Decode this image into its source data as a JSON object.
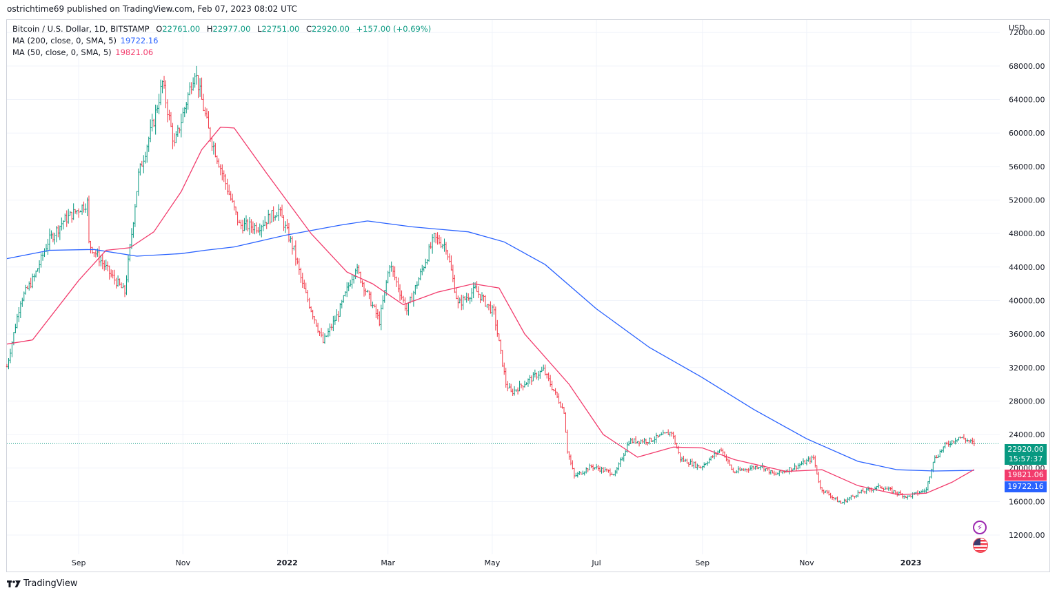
{
  "header": {
    "publish_line": "ostrichtime69 published on TradingView.com, Feb 07, 2023 08:02 UTC"
  },
  "legend": {
    "symbol": "Bitcoin / U.S. Dollar, 1D, BITSTAMP",
    "o_label": "O",
    "o_value": "22761.00",
    "h_label": "H",
    "h_value": "22977.00",
    "l_label": "L",
    "l_value": "22751.00",
    "c_label": "C",
    "c_value": "22920.00",
    "change": "+157.00 (+0.69%)",
    "ma200_label": "MA (200, close, 0, SMA, 5)",
    "ma200_value": "19722.16",
    "ma50_label": "MA (50, close, 0, SMA, 5)",
    "ma50_value": "19821.06"
  },
  "axis": {
    "currency": "USD"
  },
  "badges": {
    "price": "22920.00",
    "countdown": "15:57:37",
    "ma50": "19821.06",
    "ma200": "19722.16"
  },
  "footer": {
    "brand": "TradingView"
  },
  "icons": {
    "bolt": "lightning-icon",
    "flag": "us-flag-icon",
    "logo": "tradingview-logo-icon"
  },
  "colors": {
    "up": "#089981",
    "down": "#f23645",
    "ma200": "#2962ff",
    "ma50": "#f23b6c",
    "grid": "#f0f3fa",
    "text": "#131722"
  },
  "chart_data": {
    "type": "candlestick",
    "title": "Bitcoin / U.S. Dollar, 1D, BITSTAMP",
    "ylabel": "USD",
    "ylim": [
      9700,
      73500
    ],
    "yticks": [
      12000,
      16000,
      20000,
      24000,
      28000,
      32000,
      36000,
      40000,
      44000,
      48000,
      52000,
      56000,
      60000,
      64000,
      68000,
      72000
    ],
    "ytick_labels": [
      "12000.00",
      "16000.00",
      "20000.00",
      "24000.00",
      "28000.00",
      "32000.00",
      "36000.00",
      "40000.00",
      "44000.00",
      "48000.00",
      "52000.00",
      "56000.00",
      "60000.00",
      "64000.00",
      "68000.00",
      "72000.00"
    ],
    "xlim": [
      "2021-07-21",
      "2023-02-22"
    ],
    "xticks": [
      {
        "date": "2021-09-01",
        "label": "Sep"
      },
      {
        "date": "2021-11-01",
        "label": "Nov"
      },
      {
        "date": "2022-01-01",
        "label": "2022"
      },
      {
        "date": "2022-03-01",
        "label": "Mar"
      },
      {
        "date": "2022-05-01",
        "label": "May"
      },
      {
        "date": "2022-07-01",
        "label": "Jul"
      },
      {
        "date": "2022-09-01",
        "label": "Sep"
      },
      {
        "date": "2022-11-01",
        "label": "Nov"
      },
      {
        "date": "2023-01-01",
        "label": "2023"
      }
    ],
    "grid": true,
    "last_close": 22920,
    "close_path": [
      {
        "date": "2021-07-21",
        "price": 32100
      },
      {
        "date": "2021-07-29",
        "price": 40000
      },
      {
        "date": "2021-08-06",
        "price": 42800
      },
      {
        "date": "2021-08-14",
        "price": 47000
      },
      {
        "date": "2021-08-23",
        "price": 49500
      },
      {
        "date": "2021-09-06",
        "price": 51700
      },
      {
        "date": "2021-09-07",
        "price": 46800
      },
      {
        "date": "2021-09-20",
        "price": 43000
      },
      {
        "date": "2021-09-28",
        "price": 41000
      },
      {
        "date": "2021-10-06",
        "price": 55000
      },
      {
        "date": "2021-10-15",
        "price": 61500
      },
      {
        "date": "2021-10-20",
        "price": 66000
      },
      {
        "date": "2021-10-27",
        "price": 58500
      },
      {
        "date": "2021-11-08",
        "price": 67500
      },
      {
        "date": "2021-11-16",
        "price": 60300
      },
      {
        "date": "2021-11-26",
        "price": 54000
      },
      {
        "date": "2021-12-04",
        "price": 49000
      },
      {
        "date": "2021-12-15",
        "price": 48800
      },
      {
        "date": "2021-12-27",
        "price": 50800
      },
      {
        "date": "2022-01-05",
        "price": 46000
      },
      {
        "date": "2022-01-10",
        "price": 41800
      },
      {
        "date": "2022-01-22",
        "price": 35000
      },
      {
        "date": "2022-01-31",
        "price": 38500
      },
      {
        "date": "2022-02-10",
        "price": 44000
      },
      {
        "date": "2022-02-24",
        "price": 37500
      },
      {
        "date": "2022-03-02",
        "price": 44400
      },
      {
        "date": "2022-03-12",
        "price": 38800
      },
      {
        "date": "2022-03-28",
        "price": 47500
      },
      {
        "date": "2022-04-04",
        "price": 46500
      },
      {
        "date": "2022-04-11",
        "price": 39500
      },
      {
        "date": "2022-04-21",
        "price": 41300
      },
      {
        "date": "2022-05-02",
        "price": 38500
      },
      {
        "date": "2022-05-09",
        "price": 30100
      },
      {
        "date": "2022-05-12",
        "price": 29000
      },
      {
        "date": "2022-05-31",
        "price": 31700
      },
      {
        "date": "2022-06-12",
        "price": 26800
      },
      {
        "date": "2022-06-14",
        "price": 22100
      },
      {
        "date": "2022-06-18",
        "price": 19000
      },
      {
        "date": "2022-06-28",
        "price": 20200
      },
      {
        "date": "2022-07-12",
        "price": 19300
      },
      {
        "date": "2022-07-20",
        "price": 23200
      },
      {
        "date": "2022-08-01",
        "price": 23300
      },
      {
        "date": "2022-08-14",
        "price": 24300
      },
      {
        "date": "2022-08-19",
        "price": 21100
      },
      {
        "date": "2022-08-31",
        "price": 20100
      },
      {
        "date": "2022-09-12",
        "price": 22300
      },
      {
        "date": "2022-09-19",
        "price": 19500
      },
      {
        "date": "2022-10-05",
        "price": 20300
      },
      {
        "date": "2022-10-13",
        "price": 19200
      },
      {
        "date": "2022-10-25",
        "price": 20100
      },
      {
        "date": "2022-11-05",
        "price": 21200
      },
      {
        "date": "2022-11-09",
        "price": 17600
      },
      {
        "date": "2022-11-21",
        "price": 15800
      },
      {
        "date": "2022-12-01",
        "price": 17000
      },
      {
        "date": "2022-12-14",
        "price": 17800
      },
      {
        "date": "2022-12-30",
        "price": 16550
      },
      {
        "date": "2023-01-10",
        "price": 17400
      },
      {
        "date": "2023-01-14",
        "price": 20900
      },
      {
        "date": "2023-01-21",
        "price": 22700
      },
      {
        "date": "2023-01-29",
        "price": 23700
      },
      {
        "date": "2023-02-02",
        "price": 23400
      },
      {
        "date": "2023-02-07",
        "price": 22920
      }
    ],
    "series": [
      {
        "name": "MA (200, close, 0, SMA, 5)",
        "last_value": 19722.16,
        "points": [
          {
            "date": "2021-07-21",
            "price": 45000
          },
          {
            "date": "2021-08-15",
            "price": 46000
          },
          {
            "date": "2021-09-10",
            "price": 46100
          },
          {
            "date": "2021-10-05",
            "price": 45300
          },
          {
            "date": "2021-10-31",
            "price": 45600
          },
          {
            "date": "2021-11-14",
            "price": 46000
          },
          {
            "date": "2021-12-01",
            "price": 46400
          },
          {
            "date": "2021-12-31",
            "price": 47800
          },
          {
            "date": "2022-02-01",
            "price": 49000
          },
          {
            "date": "2022-02-17",
            "price": 49500
          },
          {
            "date": "2022-03-15",
            "price": 48800
          },
          {
            "date": "2022-04-17",
            "price": 48200
          },
          {
            "date": "2022-05-08",
            "price": 47000
          },
          {
            "date": "2022-06-01",
            "price": 44300
          },
          {
            "date": "2022-07-01",
            "price": 39000
          },
          {
            "date": "2022-08-01",
            "price": 34400
          },
          {
            "date": "2022-09-01",
            "price": 30800
          },
          {
            "date": "2022-10-01",
            "price": 27000
          },
          {
            "date": "2022-11-01",
            "price": 23500
          },
          {
            "date": "2022-12-01",
            "price": 20800
          },
          {
            "date": "2022-12-24",
            "price": 19800
          },
          {
            "date": "2023-01-15",
            "price": 19650
          },
          {
            "date": "2023-02-07",
            "price": 19722
          }
        ]
      },
      {
        "name": "MA (50, close, 0, SMA, 5)",
        "last_value": 19821.06,
        "points": [
          {
            "date": "2021-07-21",
            "price": 34800
          },
          {
            "date": "2021-08-05",
            "price": 35300
          },
          {
            "date": "2021-09-01",
            "price": 42400
          },
          {
            "date": "2021-09-17",
            "price": 46000
          },
          {
            "date": "2021-10-01",
            "price": 46300
          },
          {
            "date": "2021-10-15",
            "price": 48200
          },
          {
            "date": "2021-10-31",
            "price": 53000
          },
          {
            "date": "2021-11-12",
            "price": 58000
          },
          {
            "date": "2021-11-23",
            "price": 60700
          },
          {
            "date": "2021-12-01",
            "price": 60600
          },
          {
            "date": "2021-12-20",
            "price": 55200
          },
          {
            "date": "2022-01-15",
            "price": 48000
          },
          {
            "date": "2022-02-05",
            "price": 43400
          },
          {
            "date": "2022-02-20",
            "price": 42000
          },
          {
            "date": "2022-03-10",
            "price": 39500
          },
          {
            "date": "2022-03-30",
            "price": 41000
          },
          {
            "date": "2022-04-20",
            "price": 42000
          },
          {
            "date": "2022-05-05",
            "price": 41500
          },
          {
            "date": "2022-05-20",
            "price": 36000
          },
          {
            "date": "2022-06-15",
            "price": 30000
          },
          {
            "date": "2022-07-05",
            "price": 24000
          },
          {
            "date": "2022-07-25",
            "price": 21300
          },
          {
            "date": "2022-08-15",
            "price": 22500
          },
          {
            "date": "2022-09-01",
            "price": 22400
          },
          {
            "date": "2022-09-20",
            "price": 21000
          },
          {
            "date": "2022-10-20",
            "price": 19600
          },
          {
            "date": "2022-11-10",
            "price": 19800
          },
          {
            "date": "2022-12-01",
            "price": 17900
          },
          {
            "date": "2022-12-25",
            "price": 16800
          },
          {
            "date": "2023-01-10",
            "price": 17000
          },
          {
            "date": "2023-01-25",
            "price": 18300
          },
          {
            "date": "2023-02-07",
            "price": 19821
          }
        ]
      }
    ]
  }
}
